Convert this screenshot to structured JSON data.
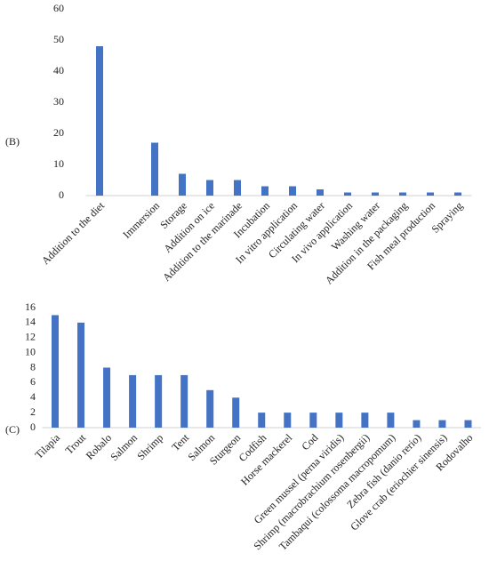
{
  "chart_data": [
    {
      "type": "bar",
      "panel_label": "(B)",
      "color": "#4472c4",
      "categories": [
        "Addition to the diet",
        null,
        "Immersion",
        "Storage",
        "Addition on ice",
        "Addition to the marinade",
        "Incubation",
        "In vitro application",
        "Circulating water",
        "In vivo application",
        "Washing water",
        "Addition in the packaging",
        "Fish meal production",
        "Spraying"
      ],
      "values": [
        48,
        null,
        17,
        7,
        5,
        5,
        3,
        3,
        2,
        1,
        1,
        1,
        1,
        1
      ],
      "ylim": [
        0,
        60
      ],
      "yticks": [
        0,
        10,
        20,
        30,
        40,
        50,
        60
      ],
      "grid": false
    },
    {
      "type": "bar",
      "panel_label": "(C)",
      "color": "#4472c4",
      "categories": [
        "Tilapia",
        "Trout",
        "Robalo",
        "Salmon",
        "Shrimp",
        "Tent",
        "Salmon",
        "Sturgeon",
        "Codfish",
        "Horse mackerel",
        "Cod",
        "Green mussel (perna viridis)",
        "Shrimp (macrobrachium rosenbergii)",
        "Tambaqui (colossoma macropomum)",
        "Zebra fish (danio rerio)",
        "Glove crab (eriochier sinensis)",
        "Rodovalho"
      ],
      "values": [
        15,
        14,
        8,
        7,
        7,
        7,
        5,
        4,
        2,
        2,
        2,
        2,
        2,
        2,
        1,
        1,
        1
      ],
      "ylim": [
        0,
        16
      ],
      "yticks": [
        0,
        2,
        4,
        6,
        8,
        10,
        12,
        14,
        16
      ],
      "grid": false
    }
  ]
}
